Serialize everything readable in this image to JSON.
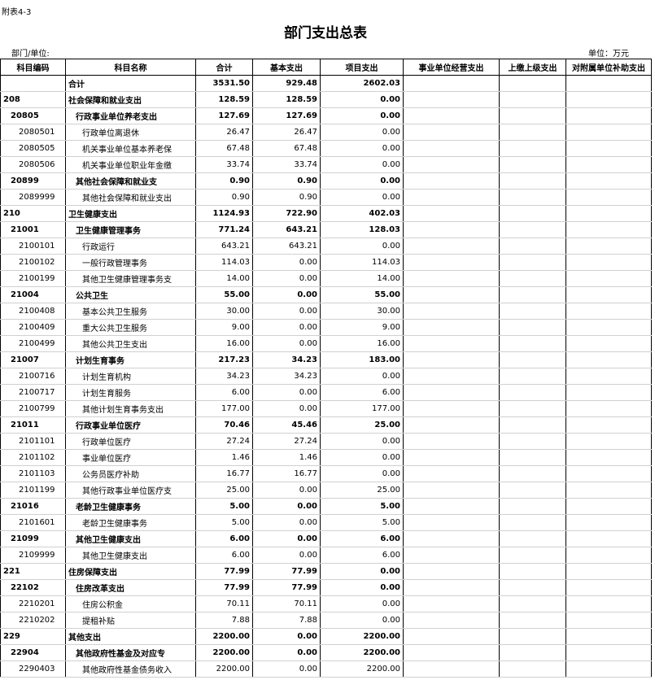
{
  "header": {
    "note": "附表4-3",
    "title": "部门支出总表",
    "unit_left": "部门/单位:",
    "unit_right": "单位：万元"
  },
  "table": {
    "columns": [
      "科目编码",
      "科目名称",
      "合计",
      "基本支出",
      "项目支出",
      "事业单位经营支出",
      "上缴上级支出",
      "对附属单位补助支出"
    ],
    "rows": [
      {
        "name": "合计",
        "total": "3531.50",
        "basic": "929.48",
        "project": "2602.03"
      },
      {
        "code": "208",
        "name": "社会保障和就业支出",
        "total": "128.59",
        "basic": "128.59",
        "project": "0.00"
      },
      {
        "code": "20805",
        "name": "行政事业单位养老支出",
        "total": "127.69",
        "basic": "127.69",
        "project": "0.00"
      },
      {
        "code": "2080501",
        "name": "行政单位离退休",
        "total": "26.47",
        "basic": "26.47",
        "project": "0.00"
      },
      {
        "code": "2080505",
        "name": "机关事业单位基本养老保",
        "total": "67.48",
        "basic": "67.48",
        "project": "0.00"
      },
      {
        "code": "2080506",
        "name": "机关事业单位职业年金缴",
        "total": "33.74",
        "basic": "33.74",
        "project": "0.00"
      },
      {
        "code": "20899",
        "name": "其他社会保障和就业支",
        "total": "0.90",
        "basic": "0.90",
        "project": "0.00"
      },
      {
        "code": "2089999",
        "name": "其他社会保障和就业支出",
        "total": "0.90",
        "basic": "0.90",
        "project": "0.00"
      },
      {
        "code": "210",
        "name": "卫生健康支出",
        "total": "1124.93",
        "basic": "722.90",
        "project": "402.03"
      },
      {
        "code": "21001",
        "name": "卫生健康管理事务",
        "total": "771.24",
        "basic": "643.21",
        "project": "128.03"
      },
      {
        "code": "2100101",
        "name": "行政运行",
        "total": "643.21",
        "basic": "643.21",
        "project": "0.00"
      },
      {
        "code": "2100102",
        "name": "一般行政管理事务",
        "total": "114.03",
        "basic": "0.00",
        "project": "114.03"
      },
      {
        "code": "2100199",
        "name": "其他卫生健康管理事务支",
        "total": "14.00",
        "basic": "0.00",
        "project": "14.00"
      },
      {
        "code": "21004",
        "name": "公共卫生",
        "total": "55.00",
        "basic": "0.00",
        "project": "55.00"
      },
      {
        "code": "2100408",
        "name": "基本公共卫生服务",
        "total": "30.00",
        "basic": "0.00",
        "project": "30.00"
      },
      {
        "code": "2100409",
        "name": "重大公共卫生服务",
        "total": "9.00",
        "basic": "0.00",
        "project": "9.00"
      },
      {
        "code": "2100499",
        "name": "其他公共卫生支出",
        "total": "16.00",
        "basic": "0.00",
        "project": "16.00"
      },
      {
        "code": "21007",
        "name": "计划生育事务",
        "total": "217.23",
        "basic": "34.23",
        "project": "183.00"
      },
      {
        "code": "2100716",
        "name": "计划生育机构",
        "total": "34.23",
        "basic": "34.23",
        "project": "0.00"
      },
      {
        "code": "2100717",
        "name": "计划生育服务",
        "total": "6.00",
        "basic": "0.00",
        "project": "6.00"
      },
      {
        "code": "2100799",
        "name": "其他计划生育事务支出",
        "total": "177.00",
        "basic": "0.00",
        "project": "177.00"
      },
      {
        "code": "21011",
        "name": "行政事业单位医疗",
        "total": "70.46",
        "basic": "45.46",
        "project": "25.00"
      },
      {
        "code": "2101101",
        "name": "行政单位医疗",
        "total": "27.24",
        "basic": "27.24",
        "project": "0.00"
      },
      {
        "code": "2101102",
        "name": "事业单位医疗",
        "total": "1.46",
        "basic": "1.46",
        "project": "0.00"
      },
      {
        "code": "2101103",
        "name": "公务员医疗补助",
        "total": "16.77",
        "basic": "16.77",
        "project": "0.00"
      },
      {
        "code": "2101199",
        "name": "其他行政事业单位医疗支",
        "total": "25.00",
        "basic": "0.00",
        "project": "25.00"
      },
      {
        "code": "21016",
        "name": "老龄卫生健康事务",
        "total": "5.00",
        "basic": "0.00",
        "project": "5.00"
      },
      {
        "code": "2101601",
        "name": "老龄卫生健康事务",
        "total": "5.00",
        "basic": "0.00",
        "project": "5.00"
      },
      {
        "code": "21099",
        "name": "其他卫生健康支出",
        "total": "6.00",
        "basic": "0.00",
        "project": "6.00"
      },
      {
        "code": "2109999",
        "name": "其他卫生健康支出",
        "total": "6.00",
        "basic": "0.00",
        "project": "6.00"
      },
      {
        "code": "221",
        "name": "住房保障支出",
        "total": "77.99",
        "basic": "77.99",
        "project": "0.00"
      },
      {
        "code": "22102",
        "name": "住房改革支出",
        "total": "77.99",
        "basic": "77.99",
        "project": "0.00"
      },
      {
        "code": "2210201",
        "name": "住房公积金",
        "total": "70.11",
        "basic": "70.11",
        "project": "0.00"
      },
      {
        "code": "2210202",
        "name": "提租补贴",
        "total": "7.88",
        "basic": "7.88",
        "project": "0.00"
      },
      {
        "code": "229",
        "name": "其他支出",
        "total": "2200.00",
        "basic": "0.00",
        "project": "2200.00"
      },
      {
        "code": "22904",
        "name": "其他政府性基金及对应专",
        "total": "2200.00",
        "basic": "0.00",
        "project": "2200.00"
      },
      {
        "code": "2290403",
        "name": "其他政府性基金债务收入",
        "total": "2200.00",
        "basic": "0.00",
        "project": "2200.00"
      }
    ]
  }
}
